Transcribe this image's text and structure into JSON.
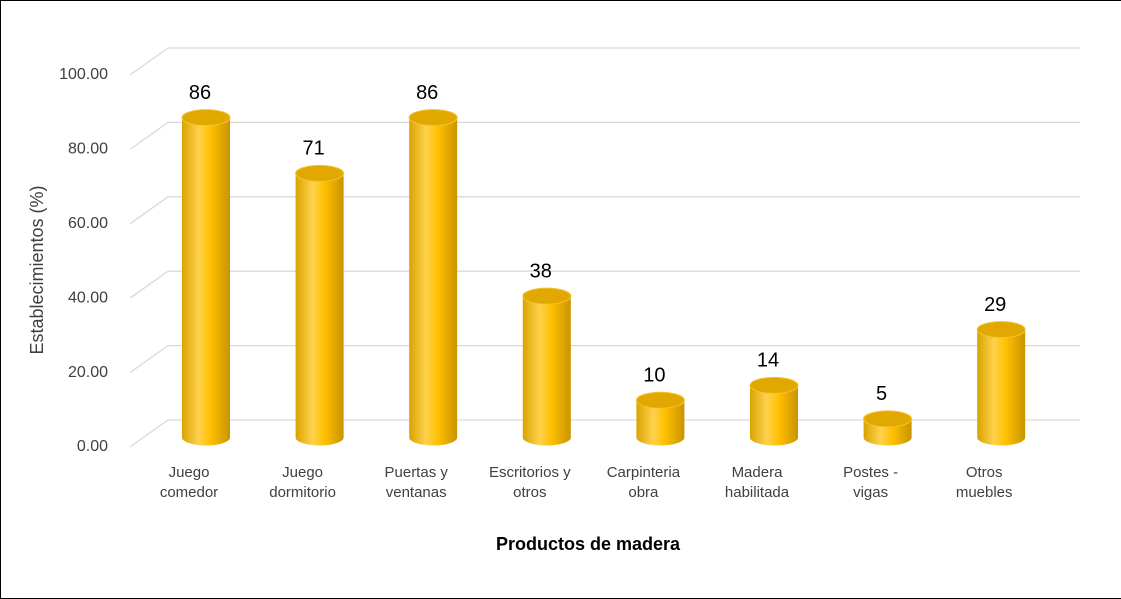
{
  "chart_data": {
    "type": "bar",
    "x_label": "Productos de madera",
    "y_label": "Establecimientos (%)",
    "categories": [
      "Juego comedor",
      "Juego dormitorio",
      "Puertas y ventanas",
      "Escritorios y otros",
      "Carpinteria obra",
      "Madera habilitada",
      "Postes - vigas",
      "Otros muebles"
    ],
    "values": [
      86,
      71,
      86,
      38,
      10,
      14,
      5,
      29
    ],
    "color": "#FFC000",
    "ylim": [
      0,
      100
    ],
    "yticks": [
      {
        "value": 0,
        "label": "0.00"
      },
      {
        "value": 20,
        "label": "20.00"
      },
      {
        "value": 40,
        "label": "40.00"
      },
      {
        "value": 60,
        "label": "60.00"
      },
      {
        "value": 80,
        "label": "80.00"
      },
      {
        "value": 100,
        "label": "100.00"
      }
    ],
    "grid": true
  }
}
